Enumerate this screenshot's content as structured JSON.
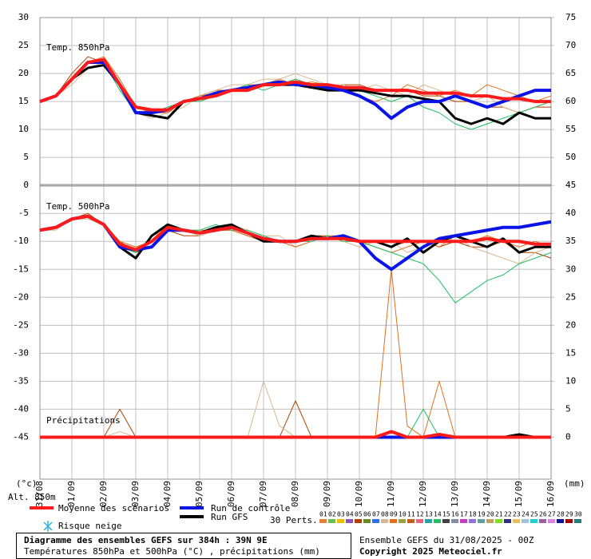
{
  "chart_data": {
    "type": "line",
    "title": "Diagramme des ensembles GEFS sur 384h : 39N 9E",
    "subtitle": "Températures 850hPa et 500hPa (°C) , précipitations (mm)",
    "run_label": "Ensemble GEFS du 31/08/2025 - 00Z",
    "copyright": "Copyright 2025 Meteociel.fr",
    "panel_labels": {
      "t850": "Temp. 850hPa",
      "t500": "Temp. 500hPa",
      "precip": "Précipitations"
    },
    "y_unit": "(°c)",
    "y2_unit": "(mm)",
    "altitude": "Alt. 850m",
    "perts_label": "30 Perts.",
    "snow_label": "Risque neige",
    "grid": true,
    "x": [
      0,
      12,
      24,
      36,
      48,
      60,
      72,
      84,
      96,
      108,
      120,
      132,
      144,
      156,
      168,
      180,
      192,
      204,
      216,
      228,
      240,
      252,
      264,
      276,
      288,
      300,
      312,
      324,
      336,
      348,
      360,
      372,
      384
    ],
    "xlim": [
      0,
      384
    ],
    "xticks": [
      {
        "value": 0,
        "label": "31/08"
      },
      {
        "value": 24,
        "label": "01/09"
      },
      {
        "value": 48,
        "label": "02/09"
      },
      {
        "value": 72,
        "label": "03/09"
      },
      {
        "value": 96,
        "label": "04/09"
      },
      {
        "value": 120,
        "label": "05/09"
      },
      {
        "value": 144,
        "label": "06/09"
      },
      {
        "value": 168,
        "label": "07/09"
      },
      {
        "value": 192,
        "label": "08/09"
      },
      {
        "value": 216,
        "label": "09/09"
      },
      {
        "value": 240,
        "label": "10/09"
      },
      {
        "value": 264,
        "label": "11/09"
      },
      {
        "value": 288,
        "label": "12/09"
      },
      {
        "value": 312,
        "label": "13/09"
      },
      {
        "value": 336,
        "label": "14/09"
      },
      {
        "value": 360,
        "label": "15/09"
      },
      {
        "value": 384,
        "label": "16/09"
      }
    ],
    "ylim": [
      -52.5,
      30
    ],
    "yticks": [
      30,
      25,
      20,
      15,
      10,
      5,
      0,
      -5,
      -10,
      -15,
      -20,
      -25,
      -30,
      -35,
      -40,
      -45
    ],
    "y2lim": [
      -7.5,
      75
    ],
    "y2ticks": [
      75,
      70,
      65,
      60,
      55,
      50,
      45,
      40,
      35,
      30,
      25,
      20,
      15,
      10,
      5,
      0
    ],
    "series": [
      {
        "name": "Moyenne des scénarios",
        "color": "#ff1a1a",
        "t850": [
          15,
          16,
          19,
          22,
          22.5,
          18,
          14,
          13.5,
          13.5,
          15,
          15.5,
          16,
          17,
          17,
          18,
          18,
          18.5,
          18,
          18,
          17.5,
          17.5,
          17,
          17,
          17,
          16.5,
          16.5,
          16.5,
          16,
          16,
          15.5,
          15.5,
          15,
          15
        ],
        "t500": [
          -8,
          -7.5,
          -6,
          -5.5,
          -7,
          -10.5,
          -11.5,
          -10,
          -7.5,
          -8,
          -8.5,
          -8,
          -7.5,
          -8.5,
          -9.5,
          -10,
          -10,
          -9.5,
          -9.5,
          -9.5,
          -10,
          -10,
          -10,
          -10,
          -10,
          -10,
          -10,
          -10,
          -9.5,
          -10,
          -10,
          -10.5,
          -10.5
        ],
        "precip": [
          0,
          0,
          0,
          0,
          0,
          0,
          0,
          0,
          0,
          0,
          0,
          0,
          0,
          0,
          0,
          0,
          0,
          0,
          0,
          0,
          0,
          0,
          1,
          0,
          0,
          0.5,
          0,
          0,
          0,
          0,
          0,
          0,
          0
        ]
      },
      {
        "name": "Run de contrôle",
        "color": "#0a14e6",
        "t850": [
          15,
          16,
          19,
          22,
          22,
          18,
          13,
          13,
          13.5,
          15,
          15.5,
          16.5,
          17,
          17.5,
          18,
          18.5,
          18,
          18,
          17.5,
          17,
          16,
          14.5,
          12,
          14,
          15,
          15,
          16,
          15,
          14,
          15,
          16,
          17,
          17
        ],
        "t500": [
          -8,
          -7.5,
          -6,
          -5.5,
          -7,
          -11,
          -11.5,
          -11,
          -8,
          -8,
          -8.5,
          -8,
          -7.5,
          -8.5,
          -9.5,
          -10,
          -10,
          -9.5,
          -9.5,
          -9,
          -10,
          -13,
          -15,
          -13,
          -11,
          -9.5,
          -9,
          -8.5,
          -8,
          -7.5,
          -7.5,
          -7,
          -6.5
        ],
        "precip": [
          0,
          0,
          0,
          0,
          0,
          0,
          0,
          0,
          0,
          0,
          0,
          0,
          0,
          0,
          0,
          0,
          0,
          0,
          0,
          0,
          0,
          0,
          0,
          0,
          0,
          0,
          0,
          0,
          0,
          0,
          0,
          0,
          0
        ]
      },
      {
        "name": "Run GFS",
        "color": "#000000",
        "t850": [
          15,
          16,
          19,
          21,
          21.5,
          18,
          13,
          12.5,
          12,
          15,
          15.5,
          16,
          17,
          17,
          18,
          18,
          18,
          17.5,
          17,
          17,
          17,
          16.5,
          16,
          16,
          15.5,
          15,
          12,
          11,
          12,
          11,
          13,
          12,
          12
        ],
        "t500": [
          -8,
          -7.5,
          -6,
          -5.5,
          -7,
          -11,
          -13,
          -9,
          -7,
          -8,
          -8.5,
          -7.5,
          -7,
          -8.5,
          -10,
          -10,
          -10,
          -9,
          -9.5,
          -9.5,
          -10,
          -10,
          -11,
          -9.5,
          -12,
          -10,
          -9,
          -10,
          -11,
          -9.5,
          -12,
          -11,
          -11
        ],
        "precip": [
          0,
          0,
          0,
          0,
          0,
          0,
          0,
          0,
          0,
          0,
          0,
          0,
          0,
          0,
          0,
          0,
          0,
          0,
          0,
          0,
          0,
          0,
          0,
          0,
          0,
          0,
          0,
          0,
          0,
          0,
          0.5,
          0,
          0
        ]
      }
    ],
    "perturbations": [
      {
        "name": "01",
        "color": "#e4803c"
      },
      {
        "name": "02",
        "color": "#6cbf4c"
      },
      {
        "name": "03",
        "color": "#e8c000"
      },
      {
        "name": "04",
        "color": "#9050c0"
      },
      {
        "name": "05",
        "color": "#b04000",
        "t850": [
          15,
          16,
          20,
          23,
          22,
          18,
          14,
          13,
          13,
          15,
          16,
          17,
          17,
          17,
          18,
          18,
          19,
          18,
          17,
          18,
          18,
          17,
          17,
          17,
          16,
          16,
          15,
          15,
          14,
          14,
          13,
          14,
          14
        ],
        "t500": [
          -8,
          -7.5,
          -6,
          -5,
          -7,
          -10,
          -12,
          -11,
          -8,
          -9,
          -9,
          -8,
          -8,
          -9,
          -10,
          -10,
          -10,
          -9,
          -9,
          -10,
          -10,
          -10,
          -11,
          -10,
          -10,
          -11,
          -10,
          -11,
          -11,
          -10,
          -12,
          -12,
          -13
        ],
        "precip": [
          0,
          0,
          0,
          0,
          0,
          5,
          0,
          0,
          0,
          0,
          0,
          0,
          0,
          0,
          0,
          0,
          6.5,
          0,
          0,
          0,
          0,
          0,
          0,
          0,
          0,
          0,
          0,
          0,
          0,
          0,
          0,
          0,
          0
        ]
      },
      {
        "name": "06",
        "color": "#6a8a20"
      },
      {
        "name": "07",
        "color": "#3070e0"
      },
      {
        "name": "08",
        "color": "#d8b890",
        "t850": [
          15,
          16,
          18,
          21,
          22,
          18,
          13,
          12,
          13,
          14,
          16,
          17,
          18,
          18,
          19,
          19,
          20,
          19,
          18,
          18,
          17,
          18,
          17,
          16,
          18,
          17,
          16,
          15,
          16,
          14,
          13,
          14,
          15
        ],
        "t500": [
          -8,
          -8,
          -6,
          -6,
          -7,
          -11,
          -12,
          -9,
          -8,
          -8,
          -9,
          -8,
          -7,
          -8,
          -9,
          -9,
          -11,
          -10,
          -9,
          -10,
          -11,
          -10,
          -10,
          -12,
          -11,
          -10,
          -9,
          -11,
          -12,
          -13,
          -14,
          -12,
          -11
        ],
        "precip": [
          0,
          0,
          0,
          0,
          0,
          1,
          0,
          0,
          0,
          0,
          0,
          0,
          0,
          0,
          10,
          2,
          0,
          0,
          0,
          0,
          0,
          0,
          0,
          0,
          0,
          0,
          0,
          0,
          0,
          0,
          0,
          0,
          0
        ]
      },
      {
        "name": "09",
        "color": "#e07020",
        "t850": [
          15,
          16,
          19,
          22,
          23,
          19,
          14,
          13,
          13,
          15,
          16,
          16.5,
          17,
          18,
          18,
          19,
          18,
          18.5,
          18,
          17,
          16,
          15,
          16,
          18,
          17,
          16,
          17,
          16,
          18,
          17,
          16,
          15,
          16
        ],
        "t500": [
          -8,
          -7.5,
          -6,
          -5.5,
          -7,
          -10,
          -11,
          -10,
          -7,
          -8,
          -8,
          -8,
          -8,
          -9,
          -10,
          -10,
          -11,
          -10,
          -9,
          -9,
          -10,
          -11,
          -12,
          -11,
          -10,
          -11,
          -9,
          -10,
          -9,
          -10,
          -11,
          -10,
          -11
        ],
        "precip": [
          0,
          0,
          0,
          0,
          0,
          0,
          0,
          0,
          0,
          0,
          0,
          0,
          0,
          0,
          0,
          0,
          0,
          0,
          0,
          0,
          0,
          0,
          30,
          2,
          0,
          10,
          0,
          0,
          0,
          0,
          0,
          0,
          0
        ]
      },
      {
        "name": "10",
        "color": "#a0a040"
      },
      {
        "name": "11",
        "color": "#c06020"
      },
      {
        "name": "12",
        "color": "#f06080"
      },
      {
        "name": "13",
        "color": "#30a0a0"
      },
      {
        "name": "14",
        "color": "#20c060",
        "t850": [
          15,
          16,
          19,
          22,
          22,
          17,
          13,
          13,
          14,
          15,
          15,
          16,
          17,
          18,
          17,
          18,
          19,
          18,
          18,
          17,
          17,
          16,
          15,
          16,
          14,
          13,
          11,
          10,
          11,
          12,
          13,
          14,
          15
        ],
        "t500": [
          -8,
          -7.5,
          -6,
          -5.5,
          -7,
          -11,
          -12,
          -10,
          -8,
          -8,
          -8,
          -7,
          -8,
          -8,
          -9,
          -10,
          -10,
          -10,
          -9,
          -10,
          -10,
          -11,
          -12,
          -13,
          -14,
          -17,
          -21,
          -19,
          -17,
          -16,
          -14,
          -13,
          -12
        ],
        "precip": [
          0,
          0,
          0,
          0,
          0,
          0,
          0,
          0,
          0,
          0,
          0,
          0,
          0,
          0,
          0,
          0,
          0,
          0,
          0,
          0,
          0,
          0,
          0,
          0,
          5,
          0,
          0,
          0,
          0,
          0,
          0,
          0,
          0
        ]
      },
      {
        "name": "15",
        "color": "#404040"
      },
      {
        "name": "16",
        "color": "#8090a0"
      },
      {
        "name": "17",
        "color": "#c040c0"
      },
      {
        "name": "18",
        "color": "#9070e0"
      },
      {
        "name": "19",
        "color": "#60a0a0"
      },
      {
        "name": "20",
        "color": "#c0a060"
      },
      {
        "name": "21",
        "color": "#80e020"
      },
      {
        "name": "22",
        "color": "#303080"
      },
      {
        "name": "23",
        "color": "#e0c060"
      },
      {
        "name": "24",
        "color": "#a0c0e0"
      },
      {
        "name": "25",
        "color": "#20d0d0"
      },
      {
        "name": "26",
        "color": "#a060a0"
      },
      {
        "name": "27",
        "color": "#e080e0"
      },
      {
        "name": "28",
        "color": "#1010a0"
      },
      {
        "name": "29",
        "color": "#a00000"
      },
      {
        "name": "30",
        "color": "#208080"
      }
    ]
  }
}
